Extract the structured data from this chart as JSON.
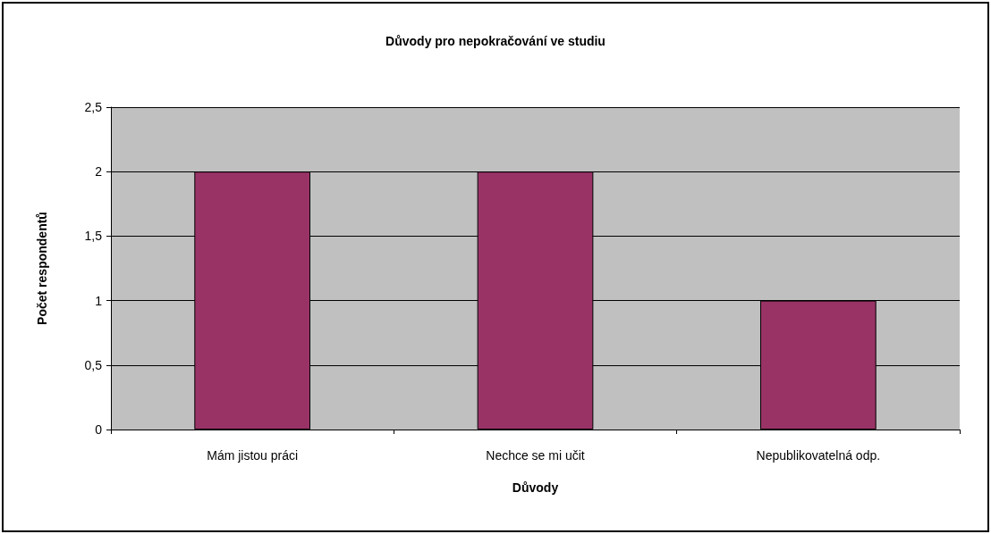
{
  "chart_data": {
    "type": "bar",
    "title": "Důvody pro nepokračování ve studiu",
    "xlabel": "Důvody",
    "ylabel": "Počet respondentů",
    "categories": [
      "Mám jistou práci",
      "Nechce se mi učit",
      "Nepublikovatelná odp."
    ],
    "values": [
      2,
      2,
      1
    ],
    "color": "#993366",
    "ylim": [
      0,
      2.5
    ],
    "yticks": [
      0,
      {
        "value": 0.5,
        "label": "0,5"
      },
      1,
      {
        "value": 1.5,
        "label": "1,5"
      },
      2,
      {
        "value": 2.5,
        "label": "2,5"
      }
    ],
    "grid": "y"
  }
}
